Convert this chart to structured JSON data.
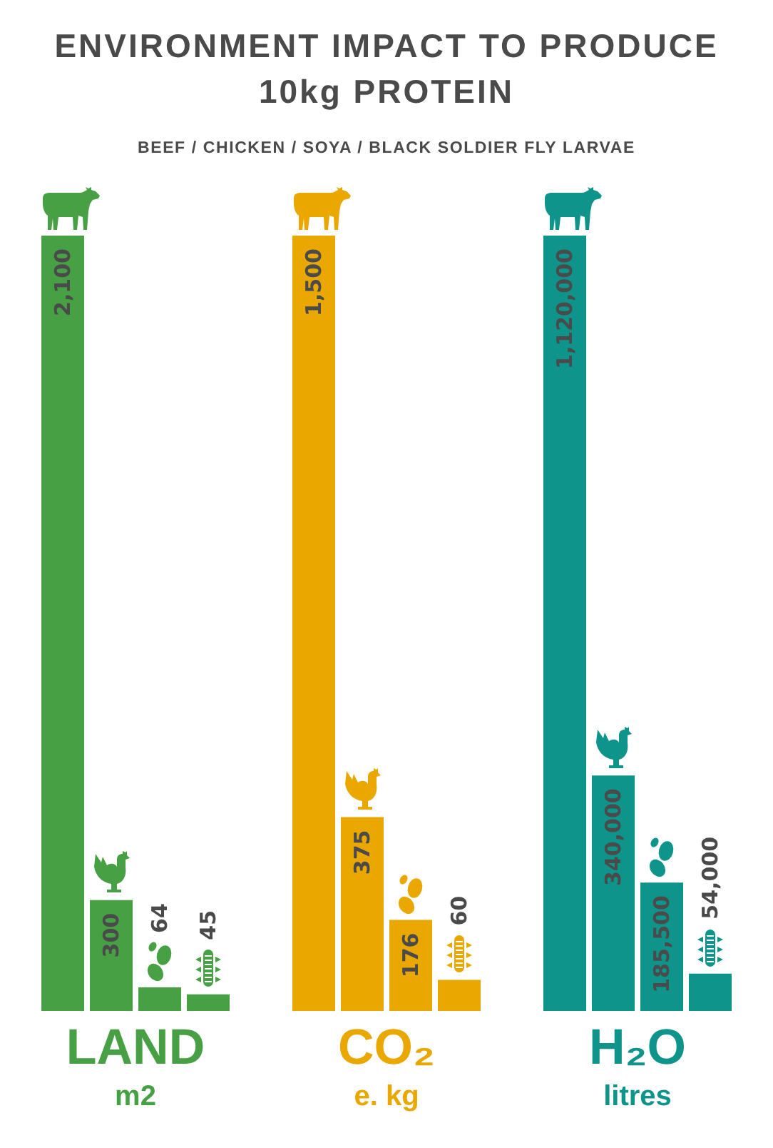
{
  "chart_data": [
    {
      "type": "bar",
      "title": "ENVIRONMENT IMPACT TO PRODUCE 10kg PROTEIN",
      "subtitle": "BEEF / CHICKEN / SOYA / BLACK SOLDIER FLY LARVAE",
      "categories": [
        null,
        null,
        null,
        null
      ],
      "values": [
        2100,
        300,
        64,
        45
      ],
      "value_labels": [
        "2,100",
        "300",
        "64",
        "45"
      ],
      "color": "#47a043",
      "xlabel": "LAND",
      "annotations": [
        "m2"
      ],
      "tick_labels": false
    },
    {
      "type": "bar",
      "categories": [
        null,
        null,
        null,
        null
      ],
      "values": [
        1500,
        375,
        176,
        60
      ],
      "value_labels": [
        "1,500",
        "375",
        "176",
        "60"
      ],
      "color": "#eaa700",
      "xlabel": "CO₂",
      "annotations": [
        "e. kg"
      ],
      "tick_labels": false
    },
    {
      "type": "bar",
      "categories": [
        null,
        null,
        null,
        null
      ],
      "values": [
        1120000,
        340000,
        185500,
        54000
      ],
      "value_labels": [
        "1,120,000",
        "340,000",
        "185,500",
        "54,000"
      ],
      "color": "#0e948a",
      "xlabel": "H₂O",
      "annotations": [
        "litres"
      ],
      "tick_labels": false
    }
  ]
}
